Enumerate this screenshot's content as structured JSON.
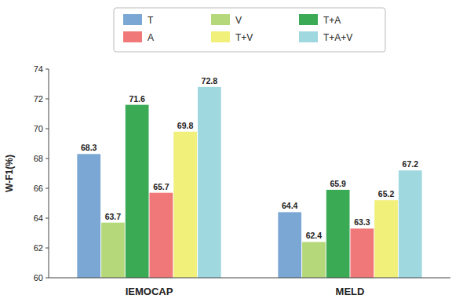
{
  "chart_data": {
    "type": "bar",
    "categories": [
      "IEMOCAP",
      "MELD"
    ],
    "series": [
      {
        "name": "T",
        "color": "#7ba7d4",
        "values": [
          68.3,
          64.4
        ]
      },
      {
        "name": "V",
        "color": "#b5d97a",
        "values": [
          63.7,
          62.4
        ]
      },
      {
        "name": "T+A",
        "color": "#3aaa55",
        "values": [
          71.6,
          65.9
        ]
      },
      {
        "name": "A",
        "color": "#f07878",
        "values": [
          65.7,
          63.3
        ]
      },
      {
        "name": "T+V",
        "color": "#f0f07a",
        "values": [
          69.8,
          65.2
        ]
      },
      {
        "name": "T+A+V",
        "color": "#a0d8df",
        "values": [
          72.8,
          67.2
        ]
      }
    ],
    "y_label": "W-F1(%)",
    "ylim": [
      60,
      74
    ],
    "yticks": [
      60,
      62,
      64,
      66,
      68,
      70,
      72,
      74
    ],
    "grid": false,
    "legend": "top",
    "data_labels": true
  }
}
